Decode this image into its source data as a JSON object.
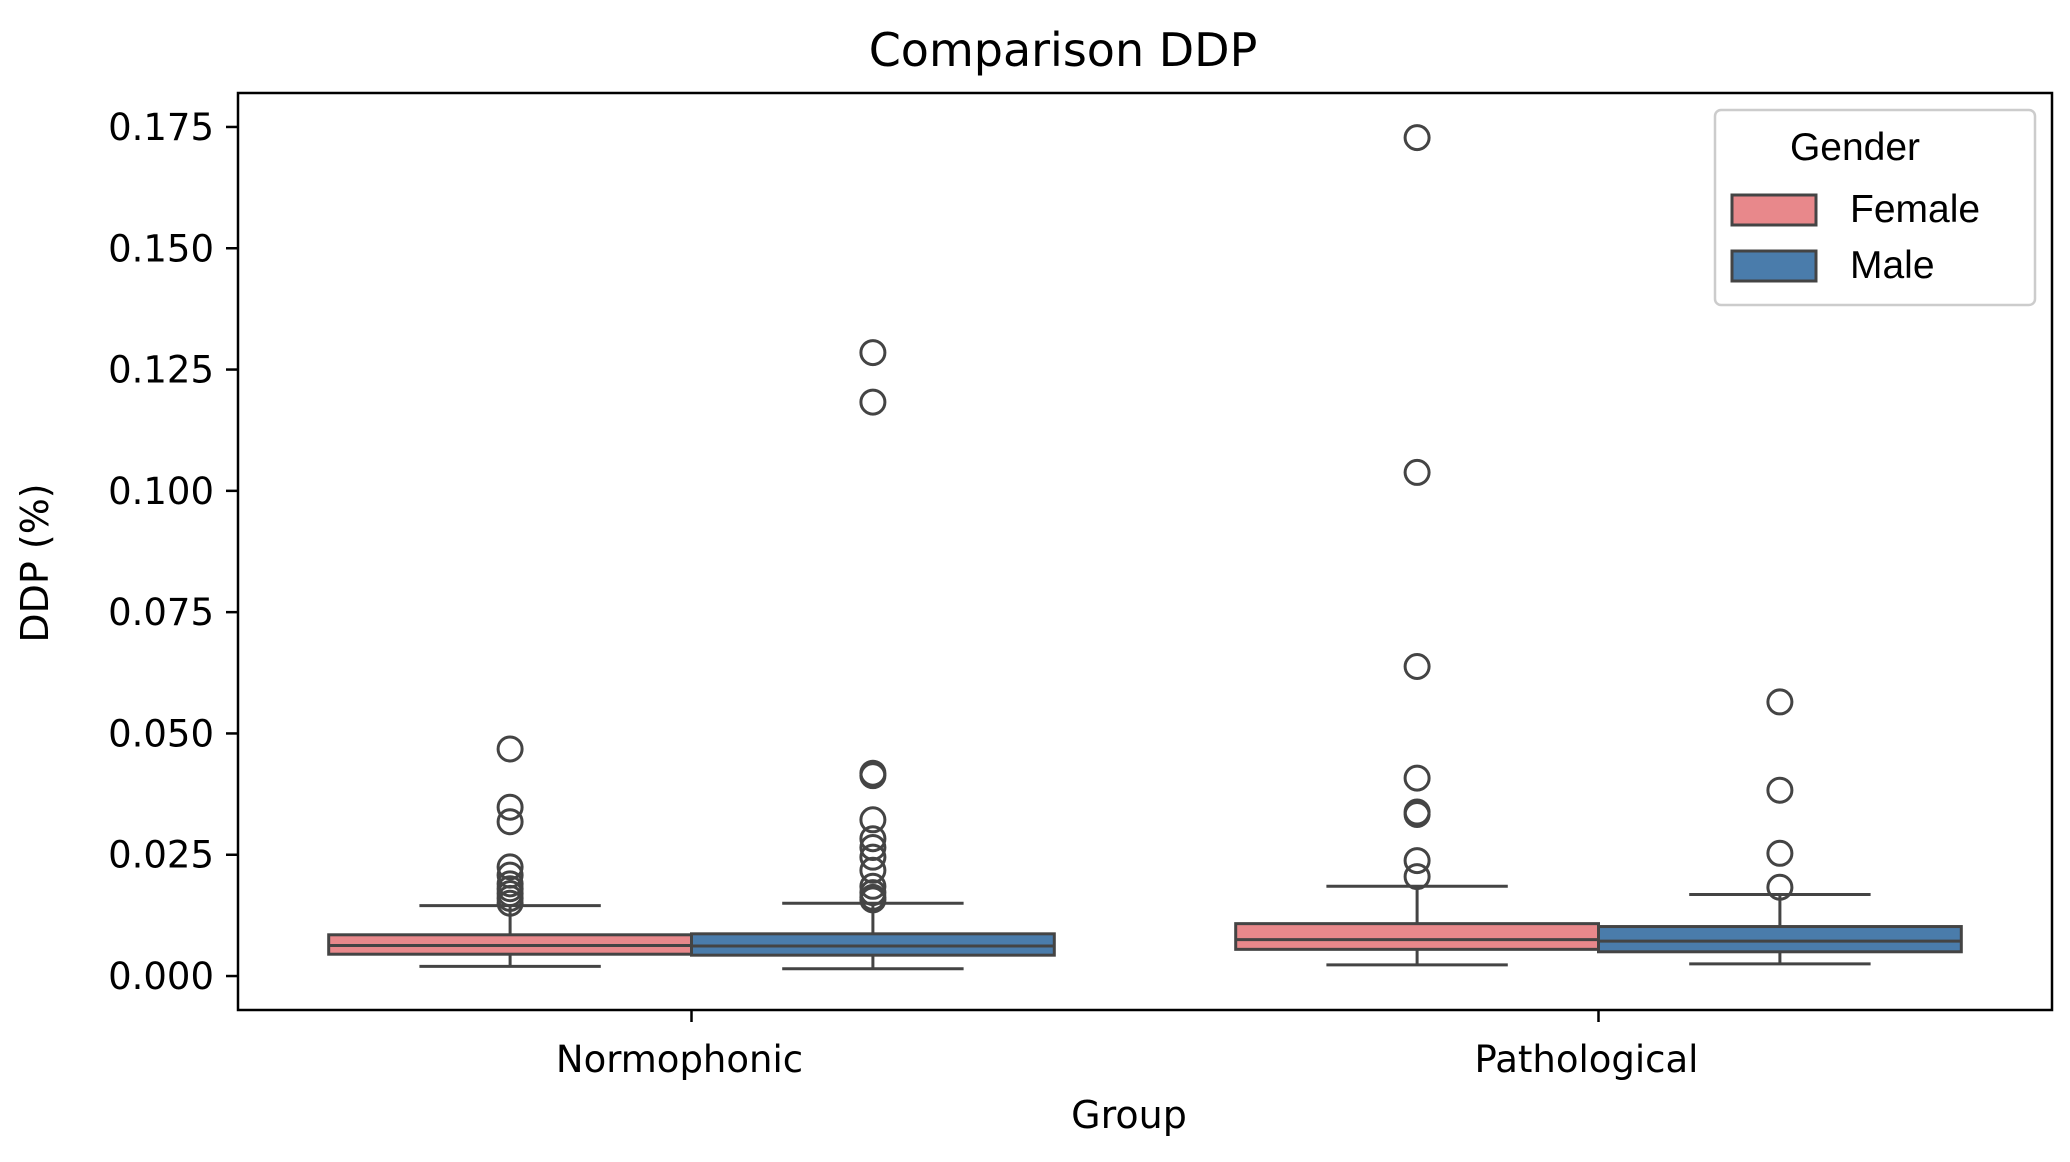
{
  "chart_data": {
    "type": "box",
    "title": "Comparison DDP",
    "xlabel": "Group",
    "ylabel": "DDP  (%)",
    "categories": [
      "Normophonic",
      "Pathological"
    ],
    "ylim": [
      -0.007,
      0.182
    ],
    "yticks": [
      "0.000",
      "0.025",
      "0.050",
      "0.075",
      "0.100",
      "0.125",
      "0.150",
      "0.175"
    ],
    "grid": false,
    "legend": {
      "title": "Gender",
      "placement": "top-right"
    },
    "series": [
      {
        "name": "Female",
        "color": "#e8888b",
        "boxes": [
          {
            "category": "Normophonic",
            "whisker_low": 0.002,
            "q1": 0.0045,
            "median": 0.0063,
            "q3": 0.0085,
            "whisker_high": 0.0145,
            "outliers": [
              0.0468,
              0.0348,
              0.0318,
              0.0225,
              0.0208,
              0.019,
              0.018,
              0.017,
              0.016,
              0.015
            ]
          },
          {
            "category": "Pathological",
            "whisker_low": 0.0023,
            "q1": 0.0055,
            "median": 0.0075,
            "q3": 0.0108,
            "whisker_high": 0.0185,
            "outliers": [
              0.1728,
              0.1038,
              0.0638,
              0.0408,
              0.0338,
              0.0333,
              0.0238,
              0.0205
            ]
          }
        ]
      },
      {
        "name": "Male",
        "color": "#4a7cab",
        "boxes": [
          {
            "category": "Normophonic",
            "whisker_low": 0.0015,
            "q1": 0.0043,
            "median": 0.0062,
            "q3": 0.0087,
            "whisker_high": 0.015,
            "outliers": [
              0.1285,
              0.1183,
              0.0418,
              0.0413,
              0.0322,
              0.0283,
              0.0265,
              0.0245,
              0.0218,
              0.0185,
              0.0172,
              0.0162,
              0.0157
            ]
          },
          {
            "category": "Pathological",
            "whisker_low": 0.0025,
            "q1": 0.005,
            "median": 0.0072,
            "q3": 0.0102,
            "whisker_high": 0.0168,
            "outliers": [
              0.0565,
              0.0383,
              0.0253,
              0.0183
            ]
          }
        ]
      }
    ]
  }
}
